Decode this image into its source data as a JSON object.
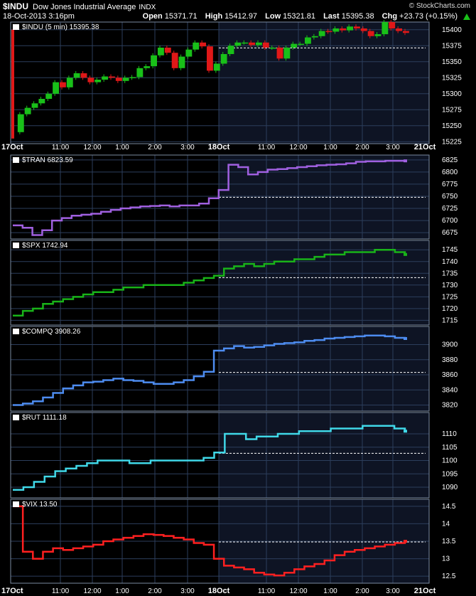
{
  "header": {
    "symbol": "$INDU",
    "name": "Dow Jones Industrial Average",
    "exchange": "INDX",
    "brand": "© StockCharts.com",
    "timestamp": "18-Oct-2013 3:16pm",
    "open_label": "Open",
    "open": "15371.71",
    "high_label": "High",
    "high": "15412.97",
    "low_label": "Low",
    "low": "15321.81",
    "last_label": "Last",
    "last": "15395.38",
    "chg_label": "Chg",
    "chg": "+23.73 (+0.15%)"
  },
  "x_axis": {
    "labels": [
      "17Oct",
      "11:00",
      "12:00",
      "1:00",
      "2:00",
      "3:00",
      "18Oct",
      "11:00",
      "12:00",
      "1:00",
      "2:00",
      "3:00",
      "21Oct"
    ],
    "bold": [
      true,
      false,
      false,
      false,
      false,
      false,
      true,
      false,
      false,
      false,
      false,
      false,
      true
    ]
  },
  "colors": {
    "indu_up": "#19c019",
    "indu_down": "#e01818",
    "tran": "#a060e0",
    "spx": "#19b319",
    "compq": "#4d8cf0",
    "rut": "#40d8e8",
    "vix": "#ff2020",
    "grid": "#2c3e5c",
    "prev_close": "#ffffff"
  },
  "chart_data": [
    {
      "type": "candlestick",
      "legend": "$INDU (5 min) 15395.38",
      "ylim": [
        15222,
        15412
      ],
      "yticks": [
        15225,
        15250,
        15275,
        15300,
        15325,
        15350,
        15375,
        15400
      ],
      "prev_close": 15371.65,
      "series": [
        {
          "name": "$INDU",
          "values": [
            15240,
            15268,
            15278,
            15285,
            15292,
            15300,
            15318,
            15310,
            15325,
            15332,
            15325,
            15318,
            15322,
            15327,
            15325,
            15320,
            15325,
            15326,
            15340,
            15343,
            15360,
            15372,
            15364,
            15340,
            15358,
            15369,
            15380,
            15374,
            15336,
            15347,
            15362,
            15375,
            15380,
            15380,
            15376,
            15380,
            15372,
            15372,
            15355,
            15372,
            15378,
            15378,
            15388,
            15390,
            15398,
            15397,
            15402,
            15399,
            15405,
            15402,
            15398,
            15390,
            15393,
            15412,
            15402,
            15398,
            15395
          ]
        }
      ]
    },
    {
      "type": "line",
      "legend": "$TRAN 6823.59",
      "ylim": [
        6662,
        6835
      ],
      "yticks": [
        6675,
        6700,
        6725,
        6750,
        6775,
        6800,
        6825
      ],
      "prev_close": 6748,
      "series": [
        {
          "name": "$TRAN",
          "values": [
            6690,
            6685,
            6670,
            6680,
            6700,
            6705,
            6710,
            6712,
            6714,
            6718,
            6722,
            6725,
            6727,
            6729,
            6730,
            6731,
            6729,
            6731,
            6731,
            6735,
            6746,
            6763,
            6815,
            6810,
            6795,
            6800,
            6805,
            6806,
            6808,
            6810,
            6812,
            6814,
            6815,
            6816,
            6818,
            6821,
            6822,
            6822,
            6823,
            6823,
            6823
          ]
        }
      ]
    },
    {
      "type": "line",
      "legend": "$SPX 1742.94",
      "ylim": [
        1713,
        1749
      ],
      "yticks": [
        1715,
        1720,
        1725,
        1730,
        1735,
        1740,
        1745
      ],
      "prev_close": 1733.15,
      "series": [
        {
          "name": "$SPX",
          "values": [
            1717,
            1719,
            1720,
            1722,
            1723,
            1724,
            1725,
            1726,
            1727,
            1727,
            1728,
            1729,
            1729,
            1730,
            1730,
            1730,
            1730,
            1731,
            1732,
            1733,
            1734,
            1737,
            1738,
            1739,
            1738,
            1739,
            1740,
            1740,
            1741,
            1741,
            1742,
            1743,
            1743,
            1744,
            1744,
            1744,
            1745,
            1745,
            1744,
            1743
          ]
        }
      ]
    },
    {
      "type": "line",
      "legend": "$COMPQ 3908.26",
      "ylim": [
        3812,
        3924
      ],
      "yticks": [
        3820,
        3840,
        3860,
        3880,
        3900
      ],
      "prev_close": 3863.15,
      "series": [
        {
          "name": "$COMPQ",
          "values": [
            3820,
            3822,
            3825,
            3830,
            3836,
            3842,
            3846,
            3850,
            3851,
            3853,
            3855,
            3853,
            3852,
            3850,
            3848,
            3848,
            3850,
            3853,
            3858,
            3864,
            3892,
            3895,
            3898,
            3896,
            3897,
            3899,
            3901,
            3902,
            3903,
            3905,
            3906,
            3908,
            3909,
            3910,
            3911,
            3912,
            3912,
            3911,
            3909,
            3908
          ]
        }
      ]
    },
    {
      "type": "line",
      "legend": "$RUT 1111.18",
      "ylim": [
        1086,
        1118
      ],
      "yticks": [
        1090,
        1095,
        1100,
        1105,
        1110
      ],
      "prev_close": 1102.7,
      "series": [
        {
          "name": "$RUT",
          "values": [
            1089,
            1090,
            1092,
            1094,
            1096,
            1097,
            1098,
            1099,
            1100,
            1100,
            1100,
            1099,
            1099,
            1100,
            1100,
            1100,
            1100,
            1100,
            1101,
            1103,
            1110,
            1110,
            1108,
            1109,
            1109,
            1110,
            1110,
            1111,
            1111,
            1111,
            1112,
            1112,
            1112,
            1113,
            1113,
            1113,
            1112,
            1111
          ]
        }
      ]
    },
    {
      "type": "line",
      "legend": "$VIX 13.50",
      "ylim": [
        12.3,
        14.7
      ],
      "yticks": [
        12.5,
        13.0,
        13.5,
        14.0,
        14.5
      ],
      "prev_close": 13.48,
      "series": [
        {
          "name": "$VIX",
          "values": [
            14.5,
            13.2,
            13.0,
            13.2,
            13.3,
            13.25,
            13.3,
            13.35,
            13.4,
            13.5,
            13.55,
            13.6,
            13.65,
            13.7,
            13.68,
            13.65,
            13.6,
            13.55,
            13.45,
            13.4,
            13.0,
            12.8,
            12.75,
            12.7,
            12.6,
            12.55,
            12.52,
            12.6,
            12.7,
            12.78,
            12.85,
            12.95,
            13.1,
            13.2,
            13.25,
            13.3,
            13.35,
            13.4,
            13.45,
            13.5
          ]
        }
      ]
    }
  ]
}
